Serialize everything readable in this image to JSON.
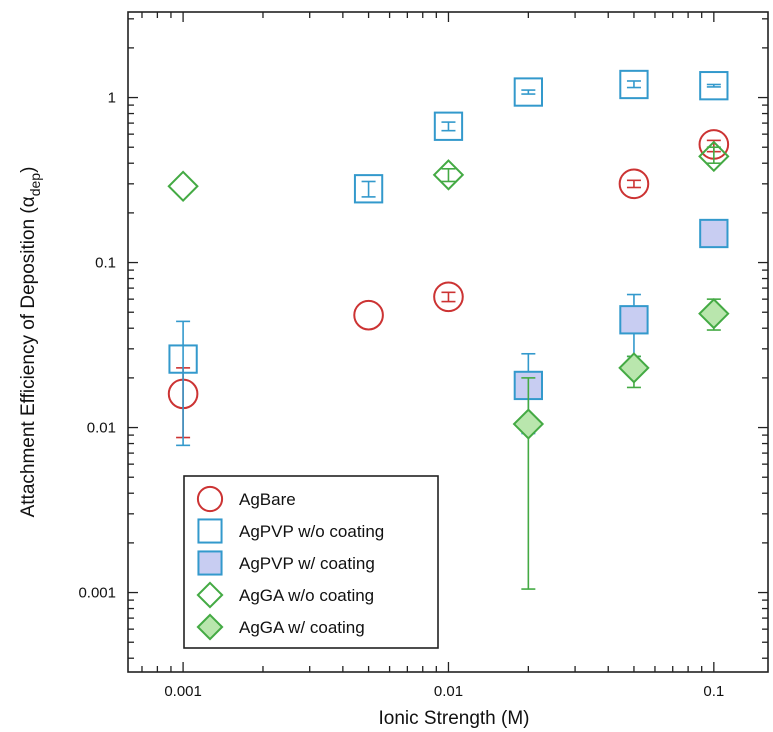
{
  "chart_data": {
    "type": "scatter",
    "xlabel": "Ionic Strength (M)",
    "ylabel_main": "Attachment Efficiency of Deposition (α",
    "ylabel_sub": "dep",
    "ylabel_close": ")",
    "xscale": "log",
    "yscale": "log",
    "xlim": [
      0.00062,
      0.16
    ],
    "ylim": [
      0.00033,
      3.3
    ],
    "x_ticks": [
      0.001,
      0.01,
      0.1
    ],
    "x_tick_labels": [
      "0.001",
      "0.01",
      "0.1"
    ],
    "y_ticks": [
      0.001,
      0.01,
      0.1,
      1
    ],
    "y_tick_labels": [
      "0.001",
      "0.01",
      "0.1",
      "1"
    ],
    "grid": false,
    "legend_position": "bottom-left",
    "series": [
      {
        "name": "AgBare",
        "marker": "circle",
        "filled": false,
        "color": "#cc3333",
        "points": [
          {
            "x": 0.001,
            "y": 0.016,
            "err_low": 0.0087,
            "err_high": 0.023
          },
          {
            "x": 0.005,
            "y": 0.048
          },
          {
            "x": 0.01,
            "y": 0.062,
            "err_low": 0.058,
            "err_high": 0.066
          },
          {
            "x": 0.05,
            "y": 0.3,
            "err_low": 0.285,
            "err_high": 0.315
          },
          {
            "x": 0.1,
            "y": 0.52,
            "err_low": 0.47,
            "err_high": 0.55
          }
        ]
      },
      {
        "name": "AgPVP w/o coating",
        "marker": "square",
        "filled": false,
        "color": "#3399cc",
        "points": [
          {
            "x": 0.001,
            "y": 0.026,
            "err_low": 0.0078,
            "err_high": 0.044
          },
          {
            "x": 0.005,
            "y": 0.28,
            "err_low": 0.25,
            "err_high": 0.31
          },
          {
            "x": 0.01,
            "y": 0.67,
            "err_low": 0.63,
            "err_high": 0.71
          },
          {
            "x": 0.02,
            "y": 1.08,
            "err_low": 1.05,
            "err_high": 1.11
          },
          {
            "x": 0.05,
            "y": 1.2,
            "err_low": 1.15,
            "err_high": 1.26
          },
          {
            "x": 0.1,
            "y": 1.18,
            "err_low": 1.16,
            "err_high": 1.2
          }
        ]
      },
      {
        "name": "AgPVP w/ coating",
        "marker": "square",
        "filled": true,
        "color": "#3399cc",
        "points": [
          {
            "x": 0.02,
            "y": 0.018,
            "err_low": 0.0092,
            "err_high": 0.028
          },
          {
            "x": 0.05,
            "y": 0.045,
            "err_low": 0.027,
            "err_high": 0.064
          },
          {
            "x": 0.1,
            "y": 0.15,
            "err_low": 0.14,
            "err_high": 0.16
          }
        ]
      },
      {
        "name": "AgGA w/o coating",
        "marker": "diamond",
        "filled": false,
        "color": "#44aa44",
        "points": [
          {
            "x": 0.001,
            "y": 0.29
          },
          {
            "x": 0.01,
            "y": 0.34,
            "err_low": 0.31,
            "err_high": 0.37
          },
          {
            "x": 0.1,
            "y": 0.44,
            "err_low": 0.4,
            "err_high": 0.5
          }
        ]
      },
      {
        "name": "AgGA w/ coating",
        "marker": "diamond",
        "filled": true,
        "color": "#44aa44",
        "points": [
          {
            "x": 0.02,
            "y": 0.0105,
            "err_low": 0.00105,
            "err_high": 0.02
          },
          {
            "x": 0.05,
            "y": 0.023,
            "err_low": 0.0175,
            "err_high": 0.027
          },
          {
            "x": 0.1,
            "y": 0.049,
            "err_low": 0.039,
            "err_high": 0.06
          }
        ]
      }
    ]
  },
  "colors": {
    "AgBare": "#cc3333",
    "AgPVP": "#3399cc",
    "AgPVP_fill": "#c8cdf2",
    "AgGA": "#44aa44",
    "AgGA_fill": "#b9e6ad",
    "axis": "#222222"
  }
}
